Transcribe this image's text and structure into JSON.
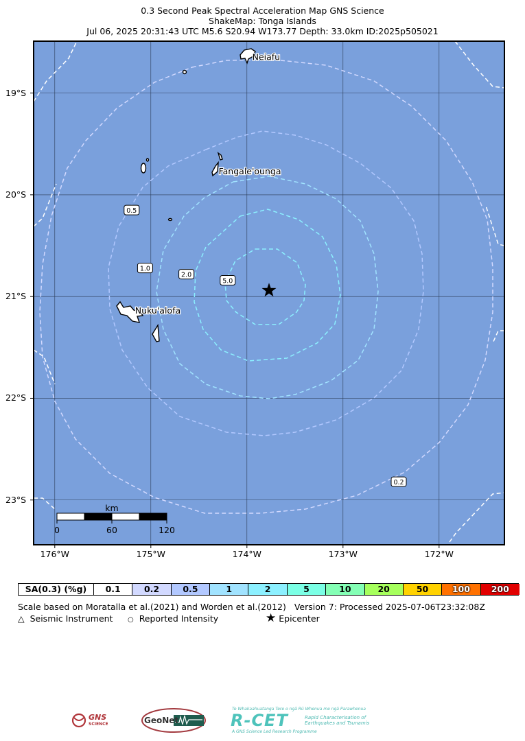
{
  "title": {
    "line1": "0.3 Second Peak Spectral Acceleration Map GNS Science",
    "line2": "ShakeMap: Tonga Islands",
    "line3": "Jul 06, 2025 20:31:43 UTC M5.6 S20.94 W173.77 Depth: 33.0km ID:2025p505021"
  },
  "map": {
    "lon_range": [
      -176.22,
      -171.32
    ],
    "lat_range": [
      -23.44,
      -18.49
    ],
    "ocean_color": "#7aa0dc",
    "lon_ticks": [
      {
        "value": -176,
        "label": "176°W"
      },
      {
        "value": -175,
        "label": "175°W"
      },
      {
        "value": -174,
        "label": "174°W"
      },
      {
        "value": -173,
        "label": "173°W"
      },
      {
        "value": -172,
        "label": "172°W"
      }
    ],
    "lat_ticks": [
      {
        "value": -19,
        "label": "19°S"
      },
      {
        "value": -20,
        "label": "20°S"
      },
      {
        "value": -21,
        "label": "21°S"
      },
      {
        "value": -22,
        "label": "22°S"
      },
      {
        "value": -23,
        "label": "23°S"
      }
    ],
    "epicenter": {
      "lon": -173.77,
      "lat": -20.94,
      "label": "Epicenter"
    },
    "places": [
      {
        "name": "Neiafu",
        "lon": -173.98,
        "lat": -18.65
      },
      {
        "name": "Fangale'ounga",
        "lon": -174.33,
        "lat": -19.77
      },
      {
        "name": "Nuku'alofa",
        "lon": -175.2,
        "lat": -21.14
      }
    ],
    "contour_labels": [
      {
        "text": "0.5",
        "lon": -175.2,
        "lat": -20.15
      },
      {
        "text": "1.0",
        "lon": -175.06,
        "lat": -20.72
      },
      {
        "text": "2.0",
        "lon": -174.63,
        "lat": -20.78
      },
      {
        "text": "5.0",
        "lon": -174.2,
        "lat": -20.84
      },
      {
        "text": "0.2",
        "lon": -172.42,
        "lat": -22.82
      }
    ],
    "scale_bar": {
      "unit": "km",
      "labels": [
        "0",
        "60",
        "120"
      ]
    }
  },
  "legend": {
    "title": "SA(0.3) (%g)",
    "bins": [
      {
        "label": "0.1",
        "color": "#ffffff"
      },
      {
        "label": "0.2",
        "color": "#d2d9ff"
      },
      {
        "label": "0.5",
        "color": "#b2c8ff"
      },
      {
        "label": "1",
        "color": "#a1e3ff"
      },
      {
        "label": "2",
        "color": "#8cf0ff"
      },
      {
        "label": "5",
        "color": "#7bffe5"
      },
      {
        "label": "10",
        "color": "#84ffb5"
      },
      {
        "label": "20",
        "color": "#a6ff5c"
      },
      {
        "label": "50",
        "color": "#ffd200"
      },
      {
        "label": "100",
        "color": "#ff7100"
      },
      {
        "label": "200",
        "color": "#e20000"
      }
    ]
  },
  "footer": {
    "scale_note": "Scale based on Moratalla et al.(2021) and Worden et al.(2012)",
    "version": "Version 7: Processed 2025-07-06T23:32:08Z",
    "key_instrument": "Seismic Instrument",
    "key_intensity": "Reported Intensity",
    "key_epicenter": "Epicenter"
  },
  "logos": {
    "gns": "GNS",
    "gns_sub": "SCIENCE",
    "geonet": "GeoNet",
    "rcet": "R-CET",
    "rcet_tagline": "Te Whakaahuatanga Tere o ngā Rū Whenua me ngā Parawhenua",
    "rcet_desc1": "Rapid Characterisation of",
    "rcet_desc2": "Earthquakes and Tsunamis",
    "rcet_desc3": "A GNS Science Led Research Programme"
  }
}
